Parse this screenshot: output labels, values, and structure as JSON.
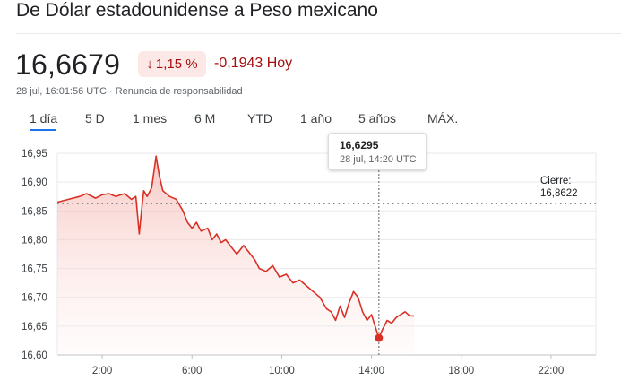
{
  "header": {
    "title": "De Dólar estadounidense a Peso mexicano",
    "price": "16,6679",
    "percent_change": "1,15 %",
    "absolute_change": "-0,1943 Hoy",
    "timestamp": "28 jul, 16:01:56 UTC",
    "disclaimer": "Renuncia de responsabilidad",
    "meta_separator": "·"
  },
  "tabs": [
    {
      "label": "1 día",
      "active": true
    },
    {
      "label": "5 D",
      "active": false
    },
    {
      "label": "1 mes",
      "active": false
    },
    {
      "label": "6 M",
      "active": false
    },
    {
      "label": "YTD",
      "active": false
    },
    {
      "label": "1 año",
      "active": false
    },
    {
      "label": "5 años",
      "active": false
    },
    {
      "label": "MÁX.",
      "active": false
    }
  ],
  "tooltip": {
    "value": "16,6295",
    "time": "28 jul, 14:20 UTC"
  },
  "previous_close": {
    "label": "Cierre:",
    "value": "16,8622"
  },
  "colors": {
    "negative": "#a50e0e",
    "line": "#d93025",
    "fill": "#fce8e6",
    "accent": "#1a73e8"
  },
  "icons": {
    "badge_arrow": "arrow-down-icon"
  },
  "chart_data": {
    "type": "area",
    "x_unit": "hours",
    "x_ticks": [
      2,
      6,
      10,
      14,
      18,
      22
    ],
    "x_tick_labels": [
      "2:00",
      "6:00",
      "10:00",
      "14:00",
      "18:00",
      "22:00"
    ],
    "xlim": [
      0,
      24
    ],
    "ylim": [
      16.6,
      16.95
    ],
    "y_ticks": [
      16.6,
      16.65,
      16.7,
      16.75,
      16.8,
      16.85,
      16.9,
      16.95
    ],
    "y_tick_labels": [
      "16,60",
      "16,65",
      "16,70",
      "16,75",
      "16,80",
      "16,85",
      "16,90",
      "16,95"
    ],
    "grid": true,
    "reference_line": 16.8622,
    "highlight_point": {
      "x": 14.33,
      "y": 16.6295
    },
    "x": [
      0.0,
      0.5,
      1.0,
      1.3,
      1.7,
      2.0,
      2.3,
      2.6,
      3.0,
      3.3,
      3.5,
      3.65,
      3.75,
      3.85,
      4.0,
      4.2,
      4.4,
      4.55,
      4.7,
      4.85,
      5.0,
      5.3,
      5.6,
      5.8,
      6.0,
      6.2,
      6.4,
      6.7,
      6.9,
      7.1,
      7.3,
      7.5,
      7.8,
      8.0,
      8.3,
      8.5,
      8.8,
      9.0,
      9.3,
      9.6,
      9.9,
      10.2,
      10.5,
      10.8,
      11.1,
      11.4,
      11.7,
      12.0,
      12.2,
      12.4,
      12.6,
      12.8,
      13.0,
      13.2,
      13.4,
      13.6,
      13.8,
      14.0,
      14.2,
      14.33,
      14.5,
      14.7,
      14.9,
      15.1,
      15.3,
      15.5,
      15.7,
      15.9
    ],
    "y": [
      16.865,
      16.87,
      16.875,
      16.88,
      16.872,
      16.878,
      16.88,
      16.875,
      16.88,
      16.87,
      16.875,
      16.81,
      16.85,
      16.885,
      16.875,
      16.89,
      16.945,
      16.91,
      16.885,
      16.88,
      16.875,
      16.87,
      16.85,
      16.83,
      16.82,
      16.83,
      16.815,
      16.82,
      16.8,
      16.81,
      16.795,
      16.8,
      16.785,
      16.775,
      16.79,
      16.78,
      16.765,
      16.75,
      16.745,
      16.755,
      16.735,
      16.74,
      16.725,
      16.73,
      16.72,
      16.71,
      16.7,
      16.68,
      16.675,
      16.66,
      16.685,
      16.665,
      16.69,
      16.71,
      16.7,
      16.675,
      16.66,
      16.67,
      16.645,
      16.6295,
      16.645,
      16.66,
      16.655,
      16.665,
      16.67,
      16.675,
      16.668,
      16.6679
    ]
  }
}
